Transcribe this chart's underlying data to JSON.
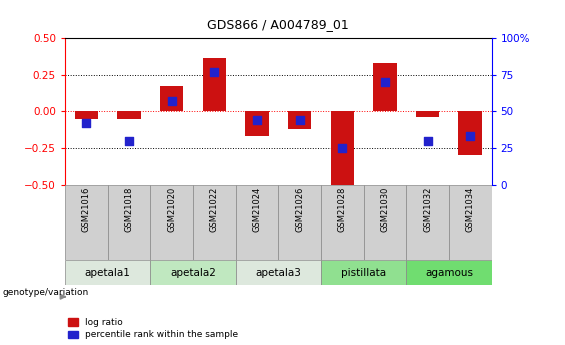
{
  "title": "GDS866 / A004789_01",
  "samples": [
    "GSM21016",
    "GSM21018",
    "GSM21020",
    "GSM21022",
    "GSM21024",
    "GSM21026",
    "GSM21028",
    "GSM21030",
    "GSM21032",
    "GSM21034"
  ],
  "log_ratio": [
    -0.055,
    -0.05,
    0.17,
    0.36,
    -0.17,
    -0.12,
    -0.52,
    0.33,
    -0.04,
    -0.3
  ],
  "percentile_rank": [
    42,
    30,
    57,
    77,
    44,
    44,
    25,
    70,
    30,
    33
  ],
  "bar_color": "#cc1111",
  "dot_color": "#2222cc",
  "ylim": [
    -0.5,
    0.5
  ],
  "yticks_left": [
    -0.5,
    -0.25,
    0.0,
    0.25,
    0.5
  ],
  "yticks_right": [
    0,
    25,
    50,
    75,
    100
  ],
  "grid_vals": [
    -0.25,
    0.0,
    0.25
  ],
  "groups": [
    {
      "label": "apetala1",
      "start": 0,
      "end": 1,
      "color": "#dde8dd"
    },
    {
      "label": "apetala2",
      "start": 2,
      "end": 3,
      "color": "#c0e8c0"
    },
    {
      "label": "apetala3",
      "start": 4,
      "end": 5,
      "color": "#dde8dd"
    },
    {
      "label": "pistillata",
      "start": 6,
      "end": 7,
      "color": "#90e090"
    },
    {
      "label": "agamous",
      "start": 8,
      "end": 9,
      "color": "#70dd70"
    }
  ],
  "legend_red_label": "log ratio",
  "legend_blue_label": "percentile rank within the sample",
  "genotype_label": "genotype/variation",
  "bar_width": 0.55,
  "dot_size": 28,
  "sample_box_color": "#d0d0d0",
  "title_fontsize": 9,
  "tick_fontsize": 7.5,
  "sample_fontsize": 6.0,
  "group_fontsize": 7.5
}
